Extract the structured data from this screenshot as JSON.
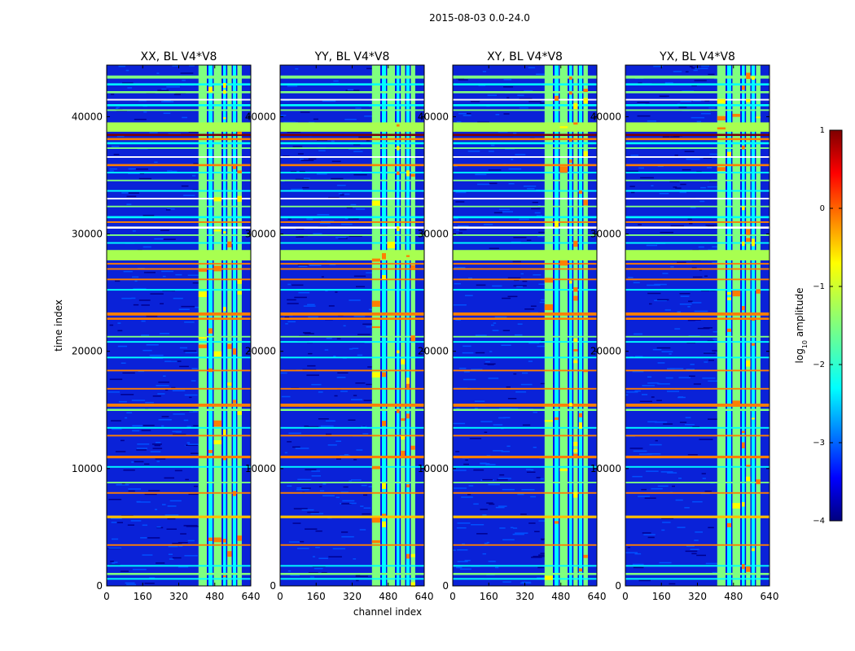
{
  "suptitle": "2015-08-03 0.0-24.0",
  "chart_data": [
    {
      "type": "heatmap",
      "title": "XX, BL V4*V8",
      "xlabel": "channel index",
      "ylabel": "time index",
      "xlim": [
        0,
        640
      ],
      "ylim": [
        0,
        44400
      ],
      "xticks": [
        "0",
        "160",
        "320",
        "480",
        "640"
      ],
      "yticks": [
        "0",
        "10000",
        "20000",
        "30000",
        "40000"
      ]
    },
    {
      "type": "heatmap",
      "title": "YY, BL V4*V8",
      "xlabel": "channel index",
      "ylabel": "time index",
      "xlim": [
        0,
        640
      ],
      "ylim": [
        0,
        44400
      ],
      "xticks": [
        "0",
        "160",
        "320",
        "480",
        "640"
      ],
      "yticks": [
        "0",
        "10000",
        "20000",
        "30000",
        "40000"
      ]
    },
    {
      "type": "heatmap",
      "title": "XY, BL V4*V8",
      "xlabel": "channel index",
      "ylabel": "time index",
      "xlim": [
        0,
        640
      ],
      "ylim": [
        0,
        44400
      ],
      "xticks": [
        "0",
        "160",
        "320",
        "480",
        "640"
      ],
      "yticks": [
        "0",
        "10000",
        "20000",
        "30000",
        "40000"
      ]
    },
    {
      "type": "heatmap",
      "title": "YX, BL V4*V8",
      "xlabel": "channel index",
      "ylabel": "time index",
      "xlim": [
        0,
        640
      ],
      "ylim": [
        0,
        44400
      ],
      "xticks": [
        "0",
        "160",
        "320",
        "480",
        "640"
      ],
      "yticks": [
        "0",
        "10000",
        "20000",
        "30000",
        "40000"
      ]
    }
  ],
  "colorbar": {
    "label": "log10 amplitude",
    "range": [
      -4,
      1
    ],
    "ticks": [
      "1",
      "0",
      "−1",
      "−2",
      "−3",
      "−4"
    ],
    "colormap": "jet",
    "colors": [
      "#00007f",
      "#0000ff",
      "#007fff",
      "#00ffff",
      "#7fff7f",
      "#ffff00",
      "#ff7f00",
      "#ff0000",
      "#7f0000"
    ]
  },
  "xlabel_shared": "channel index",
  "ylabel_shared": "time index"
}
